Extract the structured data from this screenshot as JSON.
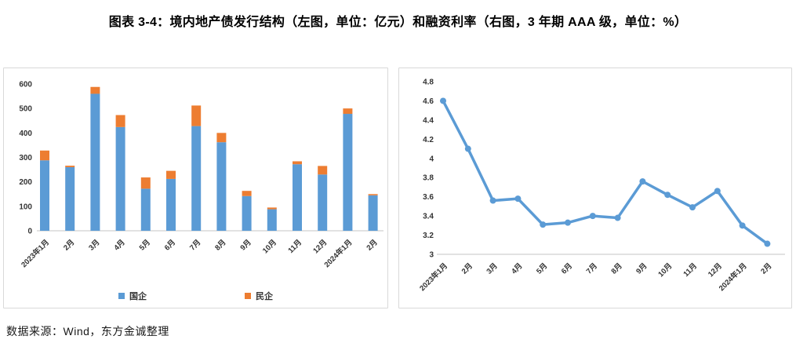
{
  "title": "图表 3-4：境内地产债发行结构（左图，单位：亿元）和融资利率（右图，3 年期 AAA 级，单位：%）",
  "source_note": "数据来源：Wind，东方金诚整理",
  "colors": {
    "bar_blue": "#5B9BD5",
    "bar_orange": "#ED7D31",
    "line_blue": "#5B9BD5",
    "axis_line": "#D9D9D9",
    "tick_label": "#333333"
  },
  "chart_data": [
    {
      "type": "bar",
      "position": "left",
      "stacked": true,
      "unit_label": "亿元",
      "categories": [
        "2023年1月",
        "2月",
        "3月",
        "4月",
        "5月",
        "6月",
        "7月",
        "8月",
        "9月",
        "10月",
        "11月",
        "12月",
        "2024年1月",
        "2月"
      ],
      "series": [
        {
          "name": "国企",
          "color": "#5B9BD5",
          "values": [
            288,
            260,
            560,
            424,
            172,
            212,
            428,
            362,
            142,
            88,
            272,
            230,
            478,
            145
          ]
        },
        {
          "name": "民企",
          "color": "#ED7D31",
          "values": [
            40,
            6,
            28,
            49,
            46,
            33,
            84,
            38,
            21,
            7,
            12,
            35,
            22,
            5
          ]
        }
      ],
      "ylim": [
        0,
        600
      ],
      "yticks": [
        0,
        100,
        200,
        300,
        400,
        500,
        600
      ],
      "grid": false,
      "legend_position": "bottom"
    },
    {
      "type": "line",
      "position": "right",
      "unit_label": "%",
      "categories": [
        "2023年1月",
        "2月",
        "3月",
        "4月",
        "5月",
        "6月",
        "7月",
        "8月",
        "9月",
        "10月",
        "11月",
        "12月",
        "2024年1月",
        "2月"
      ],
      "series": [
        {
          "name": "融资利率（3 年期 AAA 级）",
          "color": "#5B9BD5",
          "values": [
            4.6,
            4.1,
            3.56,
            3.58,
            3.31,
            3.33,
            3.4,
            3.38,
            3.76,
            3.62,
            3.49,
            3.66,
            3.3,
            3.11
          ]
        }
      ],
      "ylim": [
        3,
        4.8
      ],
      "yticks": [
        3,
        3.2,
        3.4,
        3.6,
        3.8,
        4,
        4.2,
        4.4,
        4.6,
        4.8
      ],
      "grid": false,
      "legend_position": "none"
    }
  ]
}
